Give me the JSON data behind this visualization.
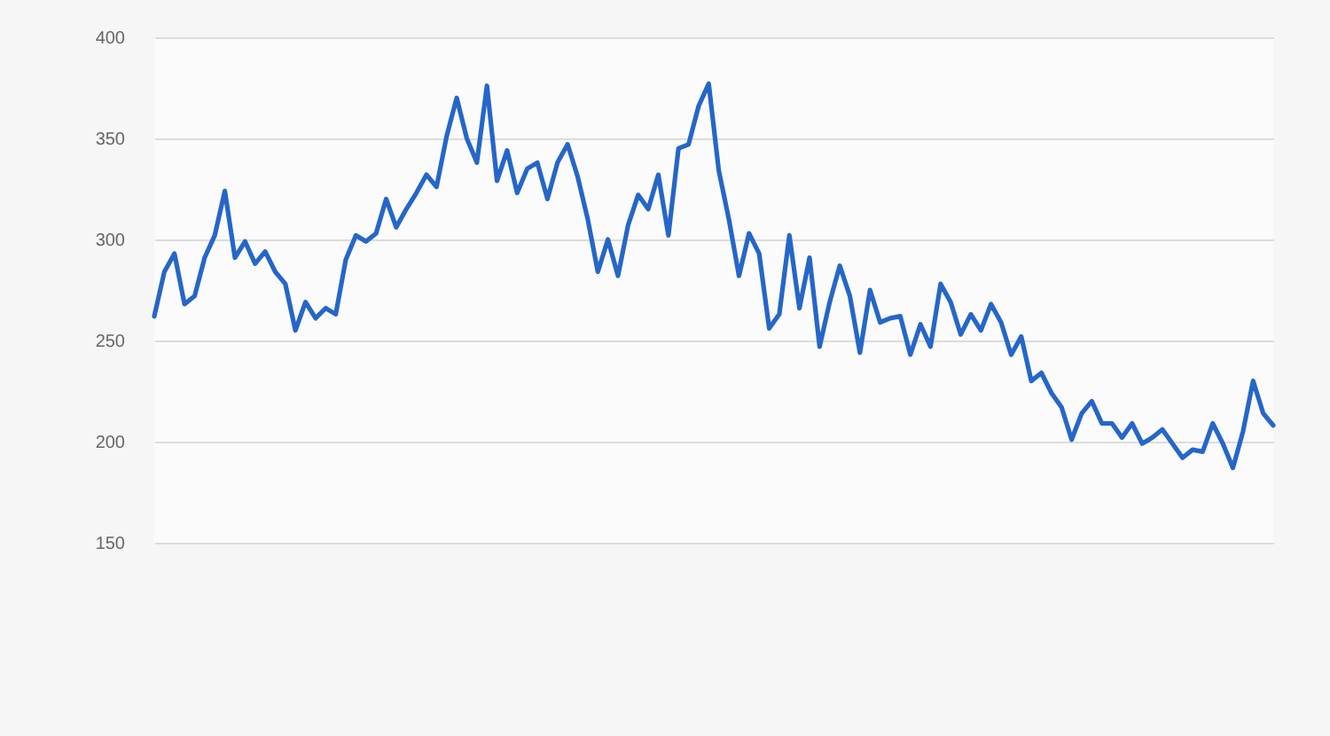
{
  "chart_data": {
    "type": "line",
    "categories": [
      null,
      null,
      null,
      null,
      null,
      null,
      null,
      null,
      null,
      null,
      null,
      null,
      null,
      null,
      null,
      null,
      null,
      null,
      null,
      null,
      null,
      null,
      null,
      null,
      null,
      null,
      null,
      null,
      null,
      null,
      null,
      null,
      null,
      null,
      null,
      null,
      null,
      null,
      null,
      null,
      null,
      null,
      null,
      null,
      null,
      null,
      null,
      null,
      null,
      null,
      null,
      null,
      null,
      null,
      null,
      null,
      null,
      null,
      null,
      null,
      null,
      null,
      null,
      null,
      null,
      null,
      null,
      null,
      null,
      null,
      null,
      null,
      null,
      null,
      null,
      null,
      null,
      null,
      null,
      null,
      null,
      null,
      null,
      null,
      null,
      null,
      null,
      null,
      null,
      null,
      null,
      null,
      null,
      null,
      null,
      null,
      null,
      null,
      null,
      null,
      null,
      null,
      null,
      null,
      null,
      null,
      null,
      null,
      null,
      null,
      null,
      null
    ],
    "series": [
      {
        "color": "#2566c8",
        "values": [
          262,
          284,
          293,
          268,
          272,
          291,
          302,
          324,
          291,
          299,
          288,
          294,
          284,
          278,
          255,
          269,
          261,
          266,
          263,
          290,
          302,
          299,
          303,
          320,
          306,
          315,
          323,
          332,
          326,
          351,
          370,
          350,
          338,
          376,
          329,
          344,
          323,
          335,
          338,
          320,
          338,
          347,
          331,
          310,
          284,
          300,
          282,
          307,
          322,
          315,
          332,
          302,
          345,
          347,
          366,
          377,
          334,
          310,
          282,
          303,
          293,
          256,
          263,
          302,
          266,
          291,
          247,
          269,
          287,
          272,
          244,
          275,
          259,
          261,
          262,
          243,
          258,
          247,
          278,
          269,
          253,
          263,
          255,
          268,
          259,
          243,
          252,
          230,
          234,
          224,
          217,
          201,
          214,
          220,
          209,
          209,
          202,
          209,
          199,
          202,
          206,
          199,
          192,
          196,
          195,
          209,
          199,
          187,
          205,
          230,
          214,
          208
        ]
      }
    ],
    "ylim": [
      150,
      400
    ],
    "yticks": [
      150,
      200,
      250,
      300,
      350,
      400
    ],
    "grid": "y",
    "line_style": "solid"
  }
}
